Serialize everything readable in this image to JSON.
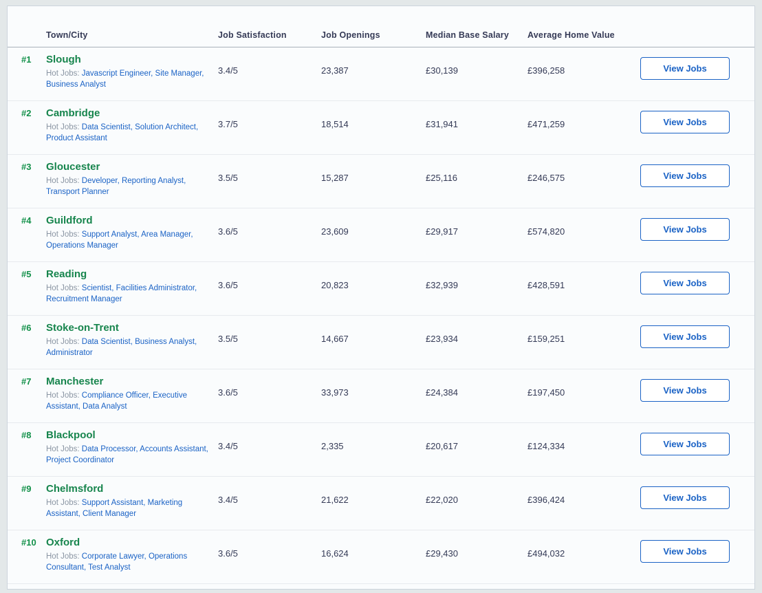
{
  "colors": {
    "accent_green": "#13914a",
    "link_blue": "#1a62c5",
    "text_dark": "#343a56",
    "muted_gray": "#8a95a3",
    "page_background": "#e3e8e9",
    "card_background": "#fafcfd"
  },
  "table": {
    "columns": [
      "Town/City",
      "Job Satisfaction",
      "Job Openings",
      "Median Base Salary",
      "Average Home Value"
    ],
    "hot_jobs_prefix": "Hot Jobs:",
    "view_jobs_label": "View Jobs",
    "rows": [
      {
        "rank": "#1",
        "city": "Slough",
        "hot_jobs": "Javascript Engineer, Site Manager, Business Analyst",
        "satisfaction": "3.4/5",
        "openings": "23,387",
        "salary": "£30,139",
        "home_value": "£396,258"
      },
      {
        "rank": "#2",
        "city": "Cambridge",
        "hot_jobs": "Data Scientist, Solution Architect, Product Assistant",
        "satisfaction": "3.7/5",
        "openings": "18,514",
        "salary": "£31,941",
        "home_value": "£471,259"
      },
      {
        "rank": "#3",
        "city": "Gloucester",
        "hot_jobs": "Developer, Reporting Analyst, Transport Planner",
        "satisfaction": "3.5/5",
        "openings": "15,287",
        "salary": "£25,116",
        "home_value": "£246,575"
      },
      {
        "rank": "#4",
        "city": "Guildford",
        "hot_jobs": "Support Analyst, Area Manager, Operations Manager",
        "satisfaction": "3.6/5",
        "openings": "23,609",
        "salary": "£29,917",
        "home_value": "£574,820"
      },
      {
        "rank": "#5",
        "city": "Reading",
        "hot_jobs": "Scientist, Facilities Administrator, Recruitment Manager",
        "satisfaction": "3.6/5",
        "openings": "20,823",
        "salary": "£32,939",
        "home_value": "£428,591"
      },
      {
        "rank": "#6",
        "city": "Stoke-on-Trent",
        "hot_jobs": "Data Scientist, Business Analyst, Administrator",
        "satisfaction": "3.5/5",
        "openings": "14,667",
        "salary": "£23,934",
        "home_value": "£159,251"
      },
      {
        "rank": "#7",
        "city": "Manchester",
        "hot_jobs": "Compliance Officer, Executive Assistant, Data Analyst",
        "satisfaction": "3.6/5",
        "openings": "33,973",
        "salary": "£24,384",
        "home_value": "£197,450"
      },
      {
        "rank": "#8",
        "city": "Blackpool",
        "hot_jobs": "Data Processor, Accounts Assistant, Project Coordinator",
        "satisfaction": "3.4/5",
        "openings": "2,335",
        "salary": "£20,617",
        "home_value": "£124,334"
      },
      {
        "rank": "#9",
        "city": "Chelmsford",
        "hot_jobs": "Support Assistant, Marketing Assistant, Client Manager",
        "satisfaction": "3.4/5",
        "openings": "21,622",
        "salary": "£22,020",
        "home_value": "£396,424"
      },
      {
        "rank": "#10",
        "city": "Oxford",
        "hot_jobs": "Corporate Lawyer, Operations Consultant, Test Analyst",
        "satisfaction": "3.6/5",
        "openings": "16,624",
        "salary": "£29,430",
        "home_value": "£494,032"
      }
    ]
  }
}
